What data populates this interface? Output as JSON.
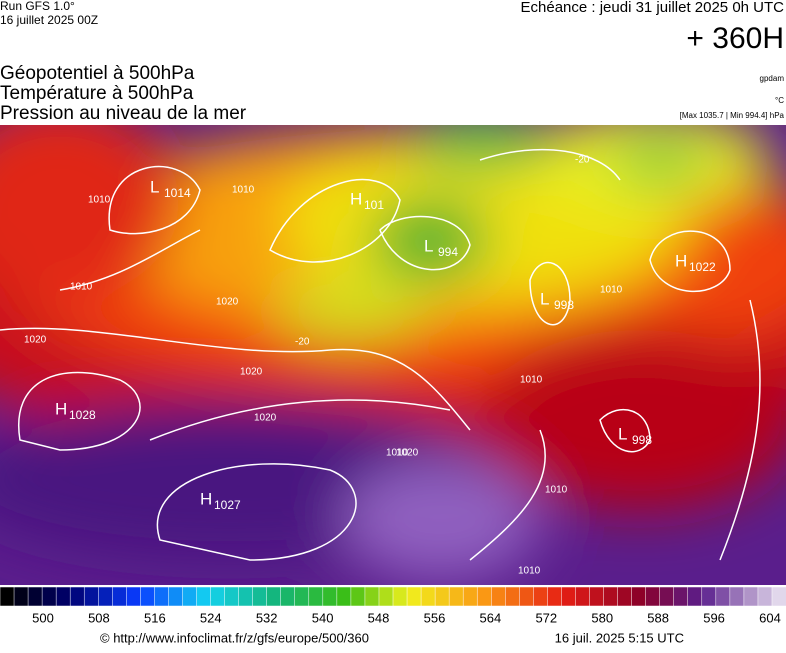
{
  "header": {
    "run": "Run GFS 1.0°",
    "date": "16 juillet 2025 00Z",
    "echeance": "Echéance : jeudi 31 juillet 2025 0h UTC",
    "offset": "+ 360H"
  },
  "layers": [
    "Géopotentiel à 500hPa",
    "Température à 500hPa",
    "Pression au niveau de la mer"
  ],
  "units": {
    "geopotential": "gpdam",
    "temperature": "°C",
    "pressure": "[Max 1035.7 | Min 994.4] hPa"
  },
  "pressure_centers": [
    {
      "letter": "H",
      "value": "1028"
    },
    {
      "letter": "H",
      "value": "1027"
    },
    {
      "letter": "H",
      "value": "1022"
    },
    {
      "letter": "L",
      "value": "994"
    },
    {
      "letter": "L",
      "value": "998"
    },
    {
      "letter": "L",
      "value": "998"
    },
    {
      "letter": "H",
      "value": "101"
    },
    {
      "letter": "L",
      "value": "1014"
    }
  ],
  "isobar_labels": [
    "1010",
    "1010",
    "1020",
    "1020",
    "1020",
    "1020",
    "1010",
    "1010",
    "1010",
    "1010",
    "1010",
    "1010",
    "1020",
    "-20",
    "-20"
  ],
  "colorbar": {
    "labels": [
      500,
      508,
      516,
      524,
      532,
      540,
      548,
      556,
      564,
      572,
      580,
      588,
      596,
      604
    ]
  },
  "footer": {
    "url": "© http://www.infoclimat.fr/z/gfs/europe/500/360",
    "timestamp": "16 juil. 2025  5:15 UTC"
  }
}
